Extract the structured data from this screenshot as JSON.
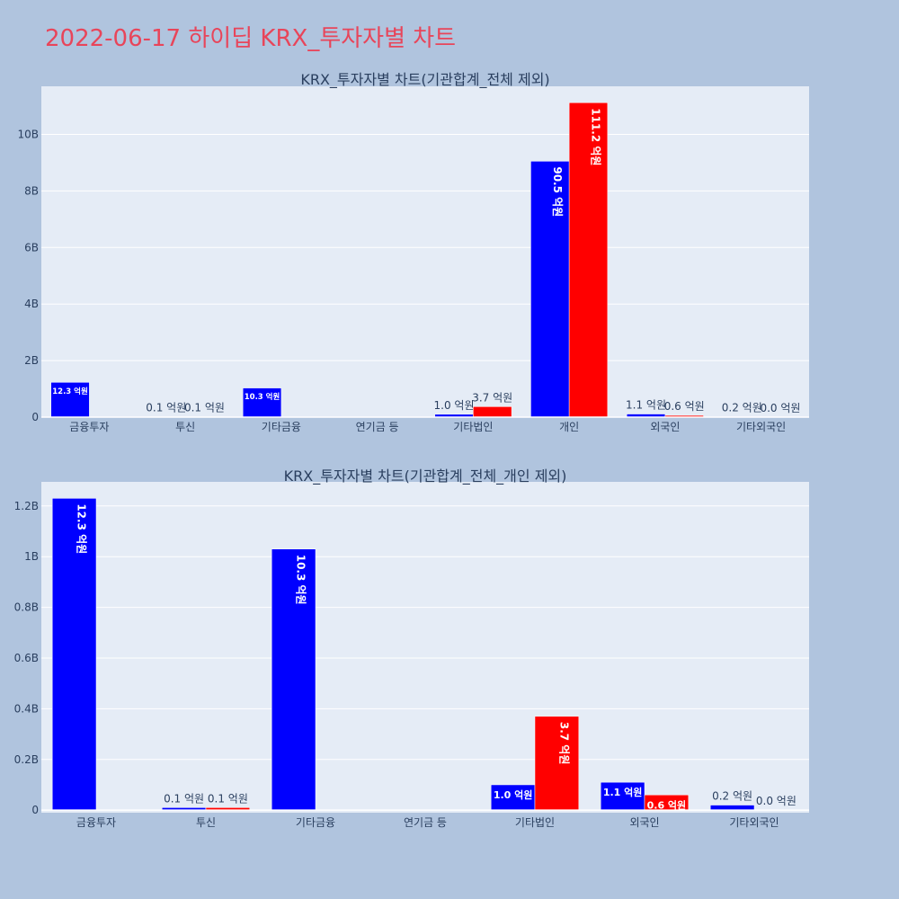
{
  "page": {
    "title": "2022-06-17 하이딥 KRX_투자자별 차트"
  },
  "colors": {
    "background": "#b0c4de",
    "plot_background": "#e5ecf6",
    "grid": "#ffffff",
    "buy": "#0000ff",
    "sell": "#ff0000",
    "title": "#e8455a",
    "text": "#2a3f5f"
  },
  "chart_data": [
    {
      "type": "bar",
      "title": "KRX_투자자별 차트(기관합계_전체 제외)",
      "categories": [
        "금융투자",
        "투신",
        "기타금융",
        "연기금 등",
        "기타법인",
        "개인",
        "외국인",
        "기타외국인"
      ],
      "series": [
        {
          "color": "#0000ff",
          "values": [
            1230000000,
            10000000,
            1030000000,
            0,
            100000000,
            9050000000,
            110000000,
            20000000
          ],
          "labels": [
            "12.3 억원",
            "0.1 억원",
            "10.3 억원",
            "",
            "1.0 억원",
            "90.5 억원",
            "1.1 억원",
            "0.2 억원"
          ]
        },
        {
          "color": "#ff0000",
          "values": [
            0,
            10000000,
            0,
            0,
            370000000,
            11120000000,
            60000000,
            0
          ],
          "labels": [
            "",
            "0.1 억원",
            "",
            "",
            "3.7 억원",
            "111.2 억원",
            "0.6 억원",
            "0.0 억원"
          ]
        }
      ],
      "ylim": [
        0,
        11700000000
      ],
      "yticks": [
        0,
        2000000000,
        4000000000,
        6000000000,
        8000000000,
        10000000000
      ],
      "ytick_labels": [
        "0",
        "2B",
        "4B",
        "6B",
        "8B",
        "10B"
      ],
      "grid": true
    },
    {
      "type": "bar",
      "title": "KRX_투자자별 차트(기관합계_전체_개인 제외)",
      "categories": [
        "금융투자",
        "투신",
        "기타금융",
        "연기금 등",
        "기타법인",
        "외국인",
        "기타외국인"
      ],
      "series": [
        {
          "color": "#0000ff",
          "values": [
            1230000000,
            10000000,
            1030000000,
            0,
            100000000,
            110000000,
            20000000
          ],
          "labels": [
            "12.3 억원",
            "0.1 억원",
            "10.3 억원",
            "",
            "1.0 억원",
            "1.1 억원",
            "0.2 억원"
          ]
        },
        {
          "color": "#ff0000",
          "values": [
            0,
            10000000,
            0,
            0,
            370000000,
            60000000,
            0
          ],
          "labels": [
            "",
            "0.1 억원",
            "",
            "",
            "3.7 억원",
            "0.6 억원",
            "0.0 억원"
          ]
        }
      ],
      "ylim": [
        -10000000,
        1295000000
      ],
      "yticks": [
        0,
        200000000,
        400000000,
        600000000,
        800000000,
        1000000000,
        1200000000
      ],
      "ytick_labels": [
        "0",
        "0.2B",
        "0.4B",
        "0.6B",
        "0.8B",
        "1B",
        "1.2B"
      ],
      "grid": true
    }
  ]
}
